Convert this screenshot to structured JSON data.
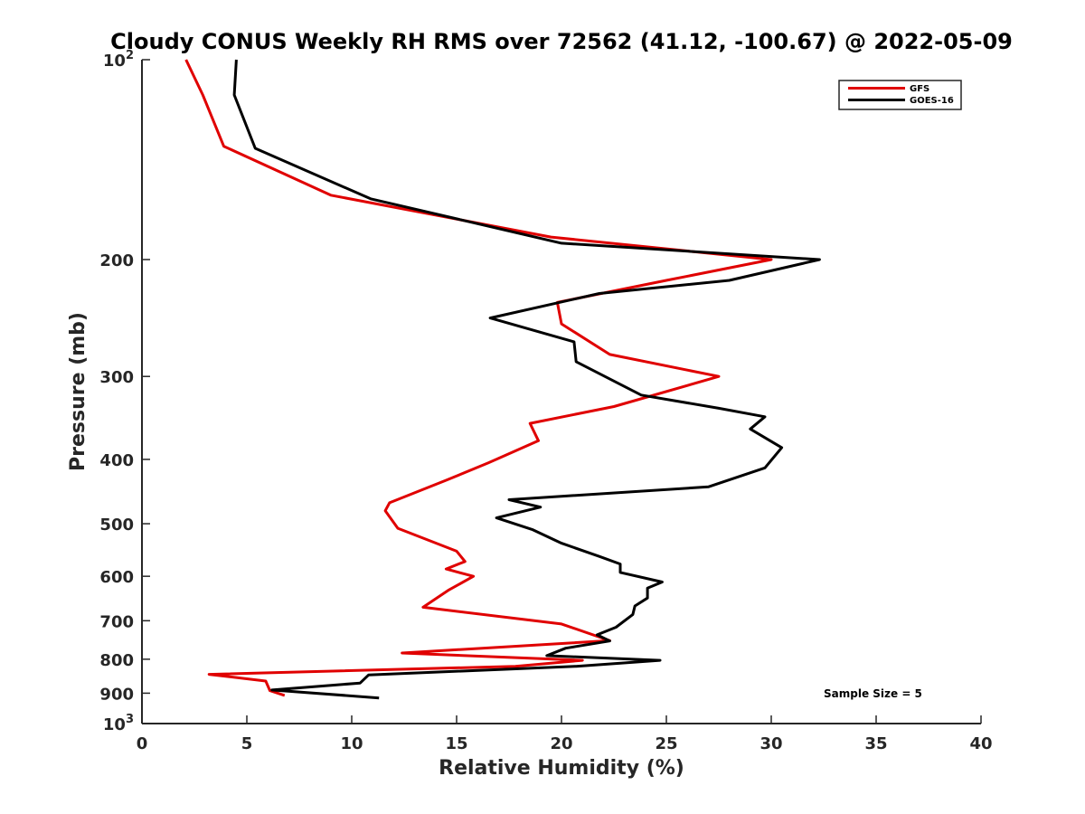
{
  "chart_data": {
    "type": "line",
    "title": "Cloudy CONUS Weekly RH RMS over 72562 (41.12, -100.67) @ 2022-05-09",
    "xlabel": "Relative Humidity (%)",
    "ylabel": "Pressure (mb)",
    "xlim": [
      0,
      40
    ],
    "ylim": [
      100,
      1000
    ],
    "y_scale": "log",
    "y_reversed": true,
    "x_ticks": [
      0,
      5,
      10,
      15,
      20,
      25,
      30,
      35,
      40
    ],
    "y_ticks": [
      {
        "value": 100,
        "base": "10",
        "exp": "2"
      },
      {
        "value": 200,
        "text": "200"
      },
      {
        "value": 300,
        "text": "300"
      },
      {
        "value": 400,
        "text": "400"
      },
      {
        "value": 500,
        "text": "500"
      },
      {
        "value": 600,
        "text": "600"
      },
      {
        "value": 700,
        "text": "700"
      },
      {
        "value": 800,
        "text": "800"
      },
      {
        "value": 900,
        "text": "900"
      },
      {
        "value": 1000,
        "base": "10",
        "exp": "3"
      }
    ],
    "grid": false,
    "legend_position": "top-right",
    "series": [
      {
        "name": "GFS",
        "color": "#e00000",
        "points": [
          [
            2.1,
            100
          ],
          [
            2.9,
            113
          ],
          [
            3.9,
            135
          ],
          [
            9.0,
            160
          ],
          [
            19.5,
            185
          ],
          [
            30.0,
            200
          ],
          [
            25.0,
            215
          ],
          [
            19.8,
            232
          ],
          [
            20.0,
            250
          ],
          [
            22.3,
            278
          ],
          [
            27.5,
            300
          ],
          [
            22.5,
            333
          ],
          [
            18.5,
            353
          ],
          [
            18.9,
            375
          ],
          [
            16.5,
            405
          ],
          [
            14.5,
            430
          ],
          [
            11.8,
            465
          ],
          [
            11.6,
            478
          ],
          [
            12.2,
            508
          ],
          [
            15.0,
            550
          ],
          [
            15.4,
            570
          ],
          [
            14.5,
            585
          ],
          [
            15.8,
            600
          ],
          [
            14.6,
            630
          ],
          [
            13.4,
            668
          ],
          [
            20.0,
            708
          ],
          [
            22.3,
            750
          ],
          [
            12.4,
            783
          ],
          [
            21.0,
            803
          ],
          [
            17.8,
            820
          ],
          [
            3.2,
            843
          ],
          [
            5.9,
            863
          ],
          [
            6.1,
            892
          ],
          [
            6.8,
            907
          ]
        ]
      },
      {
        "name": "GOES-16",
        "color": "#000000",
        "points": [
          [
            4.5,
            100
          ],
          [
            4.4,
            113
          ],
          [
            5.4,
            136
          ],
          [
            10.9,
            162
          ],
          [
            20.0,
            189
          ],
          [
            32.3,
            200
          ],
          [
            28.0,
            215
          ],
          [
            21.8,
            225
          ],
          [
            16.6,
            245
          ],
          [
            20.6,
            266
          ],
          [
            20.7,
            285
          ],
          [
            23.8,
            320
          ],
          [
            27.5,
            335
          ],
          [
            29.7,
            345
          ],
          [
            29.0,
            360
          ],
          [
            30.5,
            384
          ],
          [
            29.7,
            412
          ],
          [
            27.0,
            440
          ],
          [
            17.5,
            460
          ],
          [
            19.0,
            472
          ],
          [
            16.9,
            490
          ],
          [
            18.6,
            510
          ],
          [
            20.0,
            535
          ],
          [
            21.8,
            560
          ],
          [
            22.8,
            575
          ],
          [
            22.8,
            592
          ],
          [
            24.8,
            612
          ],
          [
            24.1,
            625
          ],
          [
            24.1,
            647
          ],
          [
            23.5,
            665
          ],
          [
            23.4,
            685
          ],
          [
            22.6,
            716
          ],
          [
            21.7,
            735
          ],
          [
            22.3,
            751
          ],
          [
            20.2,
            770
          ],
          [
            19.3,
            790
          ],
          [
            24.7,
            803
          ],
          [
            20.7,
            820
          ],
          [
            10.8,
            845
          ],
          [
            10.4,
            869
          ],
          [
            6.2,
            890
          ],
          [
            11.3,
            915
          ]
        ]
      }
    ],
    "annotations": [
      "Sample Size = 5"
    ]
  }
}
